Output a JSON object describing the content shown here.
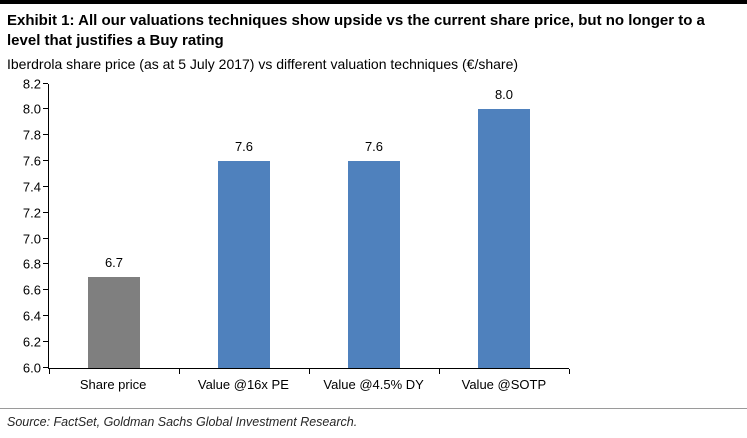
{
  "exhibit": {
    "title": "Exhibit 1: All our valuations techniques show upside vs the current share price, but no longer to a level that justifies a Buy rating",
    "subtitle": "Iberdrola share price (as at 5 July 2017) vs different valuation techniques (€/share)"
  },
  "source": "Source: FactSet, Goldman Sachs Global Investment Research.",
  "chart_data": {
    "type": "bar",
    "title": "Iberdrola share price (as at 5 July 2017) vs different valuation techniques (€/share)",
    "categories": [
      "Share price",
      "Value @16x PE",
      "Value @4.5% DY",
      "Value @SOTP"
    ],
    "values": [
      6.7,
      7.6,
      7.6,
      8.0
    ],
    "data_labels": [
      "6.7",
      "7.6",
      "7.6",
      "8.0"
    ],
    "bar_colors": [
      "#7F7F7F",
      "#4F81BD",
      "#4F81BD",
      "#4F81BD"
    ],
    "xlabel": "",
    "ylabel": "",
    "ylim": [
      6.0,
      8.2
    ],
    "ytick_step": 0.2,
    "yticks": [
      "8.2",
      "8.0",
      "7.8",
      "7.6",
      "7.4",
      "7.2",
      "7.0",
      "6.8",
      "6.6",
      "6.4",
      "6.2",
      "6.0"
    ],
    "grid": false,
    "legend": "none",
    "colors": {
      "share_price_bar": "#7F7F7F",
      "valuation_bar": "#4F81BD",
      "axis": "#000000"
    }
  }
}
